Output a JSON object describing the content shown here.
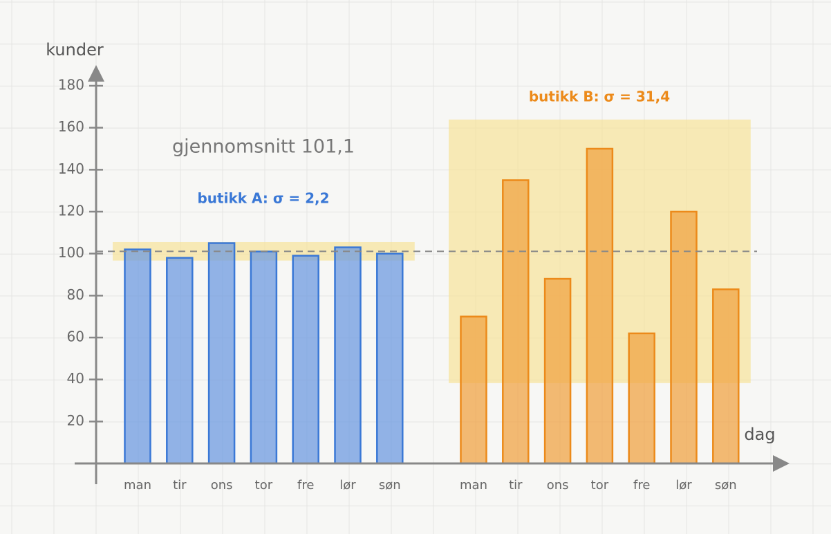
{
  "chart_data": {
    "type": "bar",
    "y_label": "kunder",
    "x_label": "dag",
    "categories": [
      "man",
      "tir",
      "ons",
      "tor",
      "fre",
      "lør",
      "søn"
    ],
    "mean": {
      "value": 101.1,
      "label": "gjennomsnitt 101,1"
    },
    "series": [
      {
        "label": "butikk A: σ = 2,2",
        "sigma": 2.2,
        "color": "#3a78d6",
        "fill": "#6f9be0",
        "band_color": "#f6e39a",
        "values": [
          102,
          98,
          105,
          101,
          99,
          103,
          100
        ]
      },
      {
        "label": "butikk B: σ = 31,4",
        "sigma": 31.4,
        "color": "#ec8a1a",
        "fill": "#f0a445",
        "band_color": "#f6e39a",
        "values": [
          70,
          135,
          88,
          150,
          62,
          120,
          83
        ]
      }
    ],
    "ylim": [
      0,
      190
    ],
    "yticks": [
      20,
      40,
      60,
      80,
      100,
      120,
      140,
      160,
      180
    ],
    "grid": true
  }
}
